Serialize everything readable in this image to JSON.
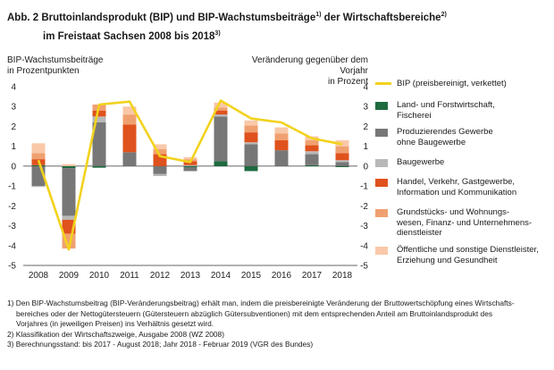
{
  "title": {
    "line1": "Abb. 2 Bruttoinlandsprodukt (BIP) und BIP-Wachstumsbeiträge",
    "line1_sup": "1)",
    "line1_tail": " der Wirtschaftsbereiche",
    "line1_sup2": "2)",
    "line2": "im Freistaat Sachsen 2008 bis 2018",
    "line2_sup": "3)"
  },
  "axis_left_label": "BIP-Wachstumsbeiträge\nin Prozentpunkten",
  "axis_right_label": "Veränderung gegenüber dem Vorjahr\nin Prozent",
  "footnotes": {
    "f1": "1) Den BIP-Wachstumsbeitrag (BIP-Veränderungsbeitrag) erhält man, indem die preisbereinigte Veränderung der Bruttowertschöpfung eines Wirtschafts-",
    "f1b": "bereiches oder der Nettogütersteuern (Gütersteuern abzüglich Gütersubventionen) mit dem entsprechenden Anteil am Bruttoinlandsprodukt des",
    "f1c": "Vorjahres  (in jeweiligen Preisen) ins Verhältnis gesetzt wird.",
    "f2": "2) Klassifikation der Wirtschaftszweige, Ausgabe 2008 (WZ 2008)",
    "f3": "3) Berechnungsstand: bis 2017 - August 2018; Jahr 2018 - Februar 2019 (VGR des Bundes)"
  },
  "chart_data": {
    "type": "bar",
    "stacked": true,
    "categories": [
      "2008",
      "2009",
      "2010",
      "2011",
      "2012",
      "2013",
      "2014",
      "2015",
      "2016",
      "2017",
      "2018"
    ],
    "ylim": [
      -5,
      4
    ],
    "yticks": [
      -5,
      -4,
      -3,
      -2,
      -1,
      0,
      1,
      2,
      3,
      4
    ],
    "grid": false,
    "legend_position": "right",
    "series": [
      {
        "name": "Land- und Forstwirtschaft, Fischerei",
        "color": "#1d6b3f",
        "values": [
          0.05,
          -0.1,
          -0.08,
          0.0,
          0.0,
          -0.05,
          0.25,
          -0.25,
          0.0,
          0.05,
          -0.05
        ]
      },
      {
        "name": "Produzierendes Gewerbe ohne Baugewerbe",
        "color": "#777777",
        "values": [
          -1.0,
          -2.4,
          2.2,
          0.7,
          -0.4,
          -0.2,
          2.25,
          1.1,
          0.8,
          0.55,
          0.2
        ]
      },
      {
        "name": "Baugewerbe",
        "color": "#b8b8b8",
        "values": [
          -0.05,
          -0.2,
          0.3,
          0.0,
          -0.1,
          0.05,
          0.1,
          0.1,
          0.0,
          0.15,
          0.1
        ]
      },
      {
        "name": "Handel, Verkehr, Gastgewerbe, Information und Kommunikation",
        "color": "#e0521d",
        "values": [
          0.3,
          -0.7,
          0.3,
          1.4,
          0.6,
          0.2,
          0.2,
          0.5,
          0.5,
          0.3,
          0.35
        ]
      },
      {
        "name": "Grundstücks- und Wohnungswesen, Finanz- und Unternehmensdienstleister",
        "color": "#f0a070",
        "values": [
          0.3,
          -0.75,
          0.3,
          0.5,
          0.25,
          0.1,
          0.15,
          0.35,
          0.35,
          0.25,
          0.35
        ]
      },
      {
        "name": "Öffentliche und sonstige Dienstleister, Erziehung und Gesundheit",
        "color": "#f9c8a8",
        "values": [
          0.5,
          0.1,
          0.0,
          0.4,
          0.25,
          0.1,
          0.25,
          0.25,
          0.3,
          0.2,
          0.3
        ]
      }
    ],
    "line": {
      "name": "BIP (preisbereinigt, verkettet)",
      "color": "#f2d21c",
      "values": [
        0.3,
        -4.2,
        3.1,
        3.25,
        0.5,
        0.2,
        3.3,
        2.4,
        2.2,
        1.4,
        1.1
      ]
    }
  },
  "legend_labels": [
    "BIP (preisbereinigt, verkettet)",
    "Land- und Forstwirtschaft,\nFischerei",
    "Produzierendes Gewerbe\nohne Baugewerbe",
    "Baugewerbe",
    "Handel, Verkehr, Gastgewerbe,\nInformation und Kommunikation",
    "Grundstücks- und Wohnungs-\nwesen, Finanz- und Unternehmens-\ndienstleister",
    "Öffentliche und sonstige Dienstleister,\nErziehung und Gesundheit"
  ]
}
